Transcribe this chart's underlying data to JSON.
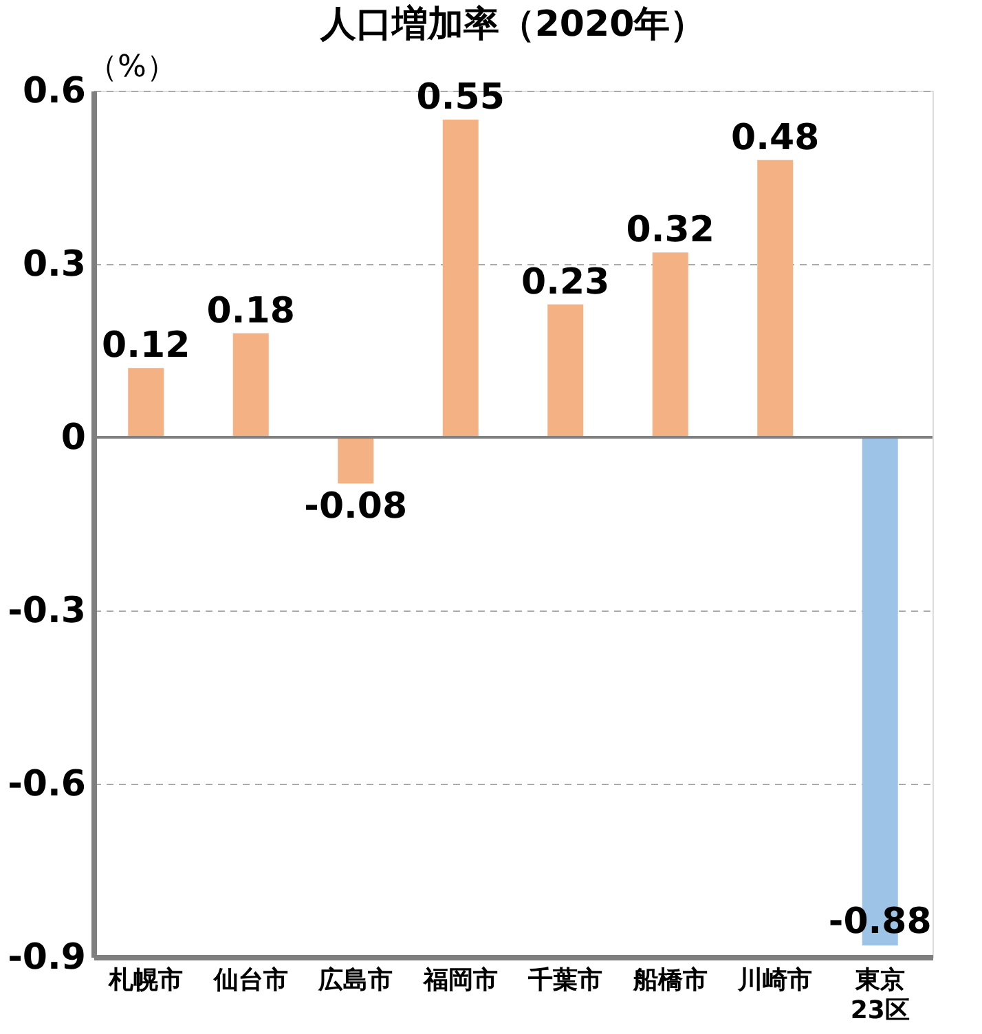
{
  "chart_data": {
    "type": "bar",
    "title": "人口増加率（2020年）",
    "ylabel": "（%）",
    "categories": [
      "札幌市",
      "仙台市",
      "広島市",
      "福岡市",
      "千葉市",
      "船橋市",
      "川崎市",
      "東京\n23区"
    ],
    "values": [
      0.12,
      0.18,
      -0.08,
      0.55,
      0.23,
      0.32,
      0.48,
      -0.88
    ],
    "colors": [
      "#f4b183",
      "#f4b183",
      "#f4b183",
      "#f4b183",
      "#f4b183",
      "#f4b183",
      "#f4b183",
      "#9dc3e6"
    ],
    "ylim": [
      -0.9,
      0.6
    ],
    "yticks": [
      -0.9,
      -0.6,
      -0.3,
      0,
      0.3,
      0.6
    ],
    "grid": "y",
    "data_labels": true,
    "ref_lines": [
      {
        "axis": "y",
        "value": 0,
        "color": "#808080"
      }
    ]
  }
}
